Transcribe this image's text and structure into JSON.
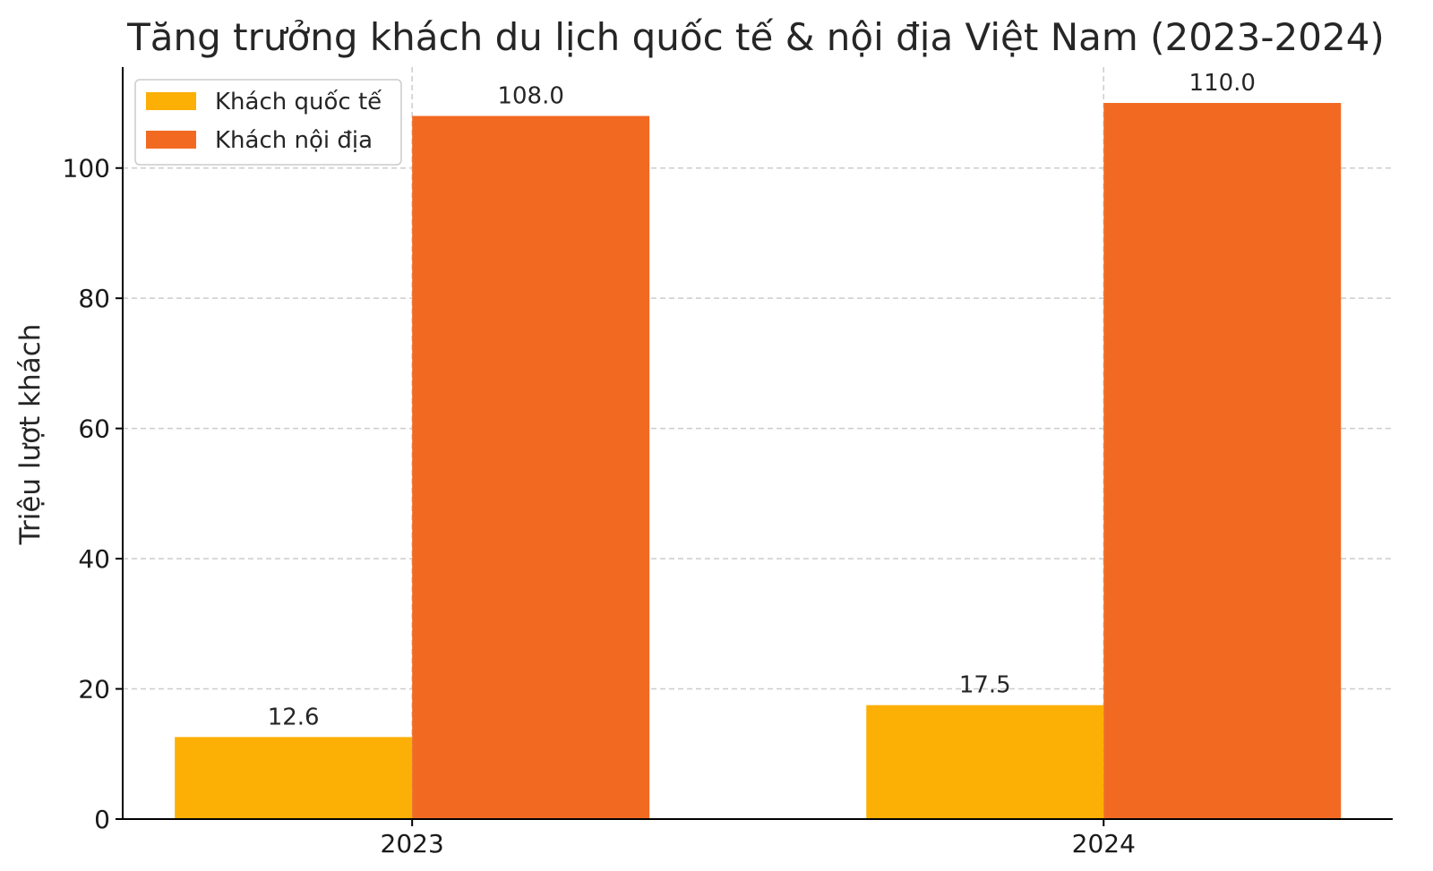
{
  "chart_data": {
    "type": "bar",
    "title": "Tăng trưởng khách du lịch quốc tế & nội địa Việt Nam (2023-2024)",
    "xlabel": "",
    "ylabel": "Triệu lượt khách",
    "categories": [
      "2023",
      "2024"
    ],
    "series": [
      {
        "name": "Khách quốc tế",
        "values": [
          12.6,
          17.5
        ],
        "color": "#FCAF04",
        "labels": [
          "12.6",
          "17.5"
        ]
      },
      {
        "name": "Khách nội địa",
        "values": [
          108.0,
          110.0
        ],
        "color": "#F26A22",
        "labels": [
          "108.0",
          "110.0"
        ]
      }
    ],
    "ylim": [
      0,
      115.5
    ],
    "yticks": [
      0,
      20,
      40,
      60,
      80,
      100
    ],
    "grid": true,
    "legend_position": "top-left"
  }
}
